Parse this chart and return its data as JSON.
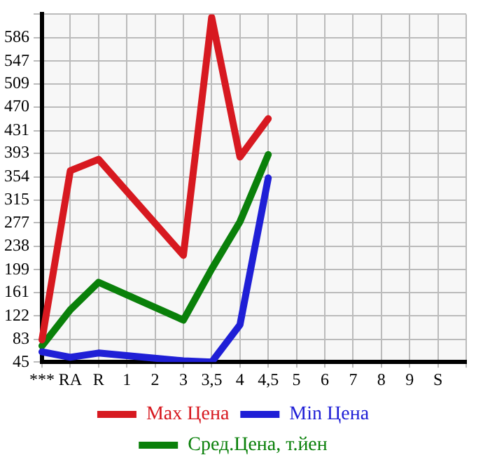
{
  "chart_data": {
    "type": "line",
    "categories": [
      "***",
      "RA",
      "R",
      "1",
      "2",
      "3",
      "3,5",
      "4",
      "4,5",
      "5",
      "6",
      "7",
      "8",
      "9",
      "S",
      null
    ],
    "series": [
      {
        "name": "Max Цена",
        "color": "#d71920",
        "values": [
          82,
          364,
          383,
          null,
          null,
          223,
          620,
          387,
          451,
          null,
          null,
          null,
          null,
          null,
          null,
          null
        ]
      },
      {
        "name": "Min Цена",
        "color": "#1f1fd6",
        "values": [
          62,
          53,
          60,
          null,
          null,
          47,
          45,
          107,
          352,
          null,
          null,
          null,
          null,
          null,
          null,
          null
        ]
      },
      {
        "name": "Сред.Цена, т.йен",
        "color": "#0a800a",
        "values": [
          72,
          132,
          178,
          null,
          null,
          115,
          200,
          279,
          391,
          null,
          null,
          null,
          null,
          null,
          null,
          null
        ]
      }
    ],
    "ylim": [
      45,
      625
    ],
    "yticks": [
      45,
      83,
      122,
      161,
      199,
      238,
      277,
      315,
      354,
      393,
      431,
      470,
      509,
      547,
      586,
      {
        "value": 625,
        "label": null
      }
    ],
    "grid": true,
    "legend": "bottom",
    "marker": "none",
    "line_style": "solid"
  }
}
